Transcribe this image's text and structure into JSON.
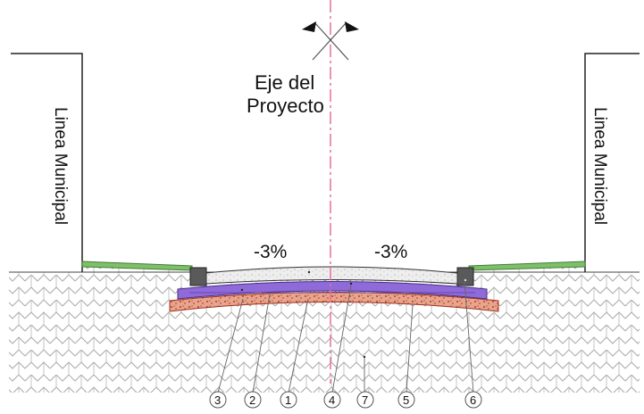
{
  "labels": {
    "axis_line1": "Eje del",
    "axis_line2": "Proyecto",
    "left_wall": "Linea Municipal",
    "right_wall": "Linea Municipal",
    "slope_left": "-3%",
    "slope_right": "-3%"
  },
  "callouts": [
    "3",
    "2",
    "1",
    "4",
    "7",
    "5",
    "6"
  ],
  "colors": {
    "axis_line": "#e8709a",
    "purple_layer": "#8f6ad9",
    "red_base": "#c9553e",
    "green_sidewalk": "#4f9a3f",
    "curb": "#5a5a5a"
  }
}
